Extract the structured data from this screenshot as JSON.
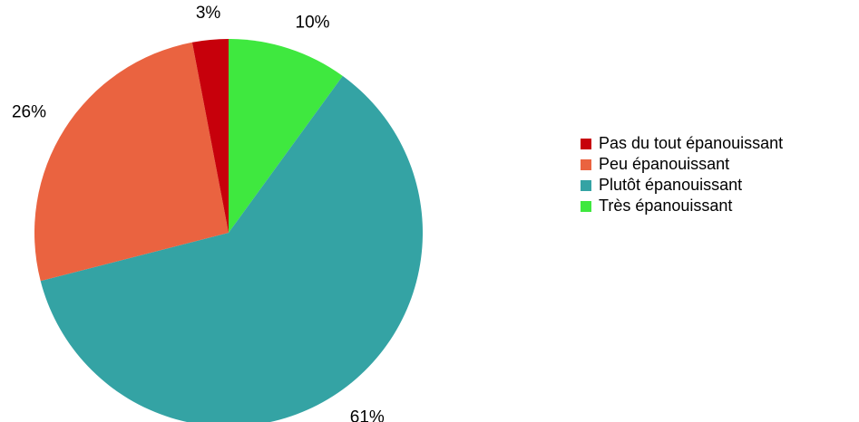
{
  "chart_data": {
    "type": "pie",
    "title": "",
    "legend_position": "right",
    "start_angle": "12 o'clock, clockwise",
    "categories": [
      "Très épanouissant",
      "Plutôt épanouissant",
      "Peu épanouissant",
      "Pas du tout épanouissant"
    ],
    "values": [
      10,
      61,
      26,
      3
    ],
    "labels": [
      "10%",
      "61%",
      "26%",
      "3%"
    ],
    "colors": [
      "#3FE83F",
      "#34A3A4",
      "#EA6340",
      "#C7000B"
    ],
    "legend": [
      {
        "label": "Pas du tout épanouissant",
        "color": "#C7000B"
      },
      {
        "label": "Peu épanouissant",
        "color": "#EA6340"
      },
      {
        "label": "Plutôt épanouissant",
        "color": "#34A3A4"
      },
      {
        "label": "Très épanouissant",
        "color": "#3FE83F"
      }
    ]
  }
}
